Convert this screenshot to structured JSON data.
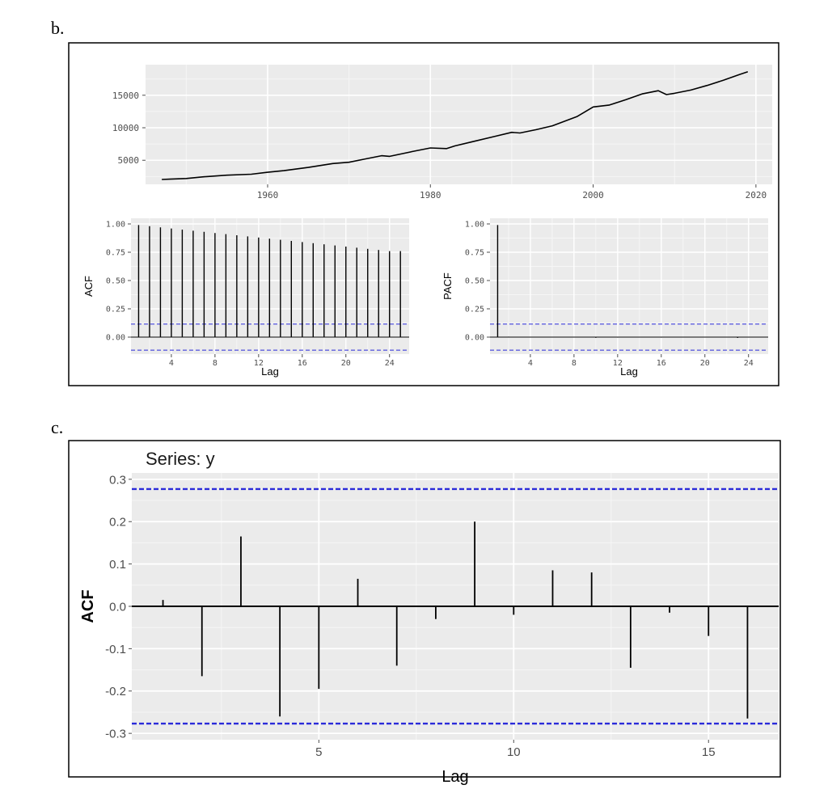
{
  "labels": {
    "b": "b.",
    "c": "c."
  },
  "chart_data": [
    {
      "type": "line",
      "panel": "b",
      "title": "",
      "x": [
        1947,
        1948,
        1950,
        1952,
        1955,
        1958,
        1960,
        1962,
        1965,
        1968,
        1970,
        1972,
        1974,
        1975,
        1978,
        1980,
        1982,
        1983,
        1985,
        1988,
        1990,
        1991,
        1993,
        1995,
        1998,
        2000,
        2002,
        2004,
        2006,
        2008,
        2009,
        2010,
        2012,
        2014,
        2016,
        2018,
        2019
      ],
      "y": [
        2050,
        2100,
        2200,
        2450,
        2700,
        2850,
        3150,
        3400,
        3900,
        4500,
        4700,
        5200,
        5700,
        5600,
        6400,
        6900,
        6800,
        7200,
        7800,
        8700,
        9300,
        9200,
        9700,
        10300,
        11700,
        13200,
        13500,
        14300,
        15200,
        15700,
        15100,
        15300,
        15800,
        16500,
        17300,
        18200,
        18600
      ],
      "xticks": [
        1960,
        1980,
        2000,
        2020
      ],
      "yticks": [
        5000,
        10000,
        15000
      ],
      "xlim": [
        1945,
        2022
      ],
      "ylim": [
        1300,
        19700
      ]
    },
    {
      "type": "bar",
      "panel": "b",
      "ylabel": "ACF",
      "xlabel": "Lag",
      "lags": [
        1,
        2,
        3,
        4,
        5,
        6,
        7,
        8,
        9,
        10,
        11,
        12,
        13,
        14,
        15,
        16,
        17,
        18,
        19,
        20,
        21,
        22,
        23,
        24,
        25
      ],
      "values": [
        0.99,
        0.98,
        0.97,
        0.96,
        0.95,
        0.94,
        0.93,
        0.92,
        0.91,
        0.9,
        0.89,
        0.88,
        0.87,
        0.86,
        0.85,
        0.84,
        0.83,
        0.82,
        0.81,
        0.8,
        0.79,
        0.78,
        0.77,
        0.76,
        0.76
      ],
      "ci": 0.115,
      "xticks": [
        4,
        8,
        12,
        16,
        20,
        24
      ],
      "yticks": [
        0.0,
        0.25,
        0.5,
        0.75,
        1.0
      ],
      "ytick_labels": [
        "0.00",
        "0.25",
        "0.50",
        "0.75",
        "1.00"
      ],
      "xlim": [
        0.3,
        25.8
      ],
      "ylim": [
        -0.15,
        1.05
      ]
    },
    {
      "type": "bar",
      "panel": "b",
      "ylabel": "PACF",
      "xlabel": "Lag",
      "lags": [
        1,
        2,
        3,
        4,
        5,
        6,
        7,
        8,
        9,
        10,
        11,
        12,
        13,
        14,
        15,
        16,
        17,
        18,
        19,
        20,
        21,
        22,
        23,
        24,
        25
      ],
      "values": [
        0.99,
        0.004,
        0.002,
        0.003,
        -0.002,
        0.002,
        0.001,
        -0.001,
        0.002,
        -0.006,
        0.002,
        -0.004,
        0.001,
        0.002,
        -0.002,
        -0.004,
        0.003,
        -0.003,
        0.002,
        -0.002,
        0.001,
        0.002,
        -0.007,
        0.001,
        0.001
      ],
      "ci": 0.115,
      "xticks": [
        4,
        8,
        12,
        16,
        20,
        24
      ],
      "yticks": [
        0.0,
        0.25,
        0.5,
        0.75,
        1.0
      ],
      "ytick_labels": [
        "0.00",
        "0.25",
        "0.50",
        "0.75",
        "1.00"
      ],
      "xlim": [
        0.3,
        25.8
      ],
      "ylim": [
        -0.15,
        1.05
      ]
    },
    {
      "type": "bar",
      "panel": "c",
      "title": "Series: y",
      "ylabel": "ACF",
      "xlabel": "Lag",
      "lags": [
        1,
        2,
        3,
        4,
        5,
        6,
        7,
        8,
        9,
        10,
        11,
        12,
        13,
        14,
        15,
        16
      ],
      "values": [
        0.015,
        -0.165,
        0.165,
        -0.26,
        -0.195,
        0.065,
        -0.14,
        -0.03,
        0.2,
        -0.02,
        0.085,
        0.08,
        -0.145,
        -0.015,
        -0.07,
        -0.265
      ],
      "ci": 0.277,
      "xticks": [
        5,
        10,
        15
      ],
      "yticks": [
        -0.3,
        -0.2,
        -0.1,
        0.0,
        0.1,
        0.2,
        0.3
      ],
      "ytick_labels": [
        "-0.3",
        "-0.2",
        "-0.1",
        "0.0",
        "0.1",
        "0.2",
        "0.3"
      ],
      "xlim": [
        0.2,
        16.8
      ],
      "ylim": [
        -0.315,
        0.315
      ]
    }
  ]
}
